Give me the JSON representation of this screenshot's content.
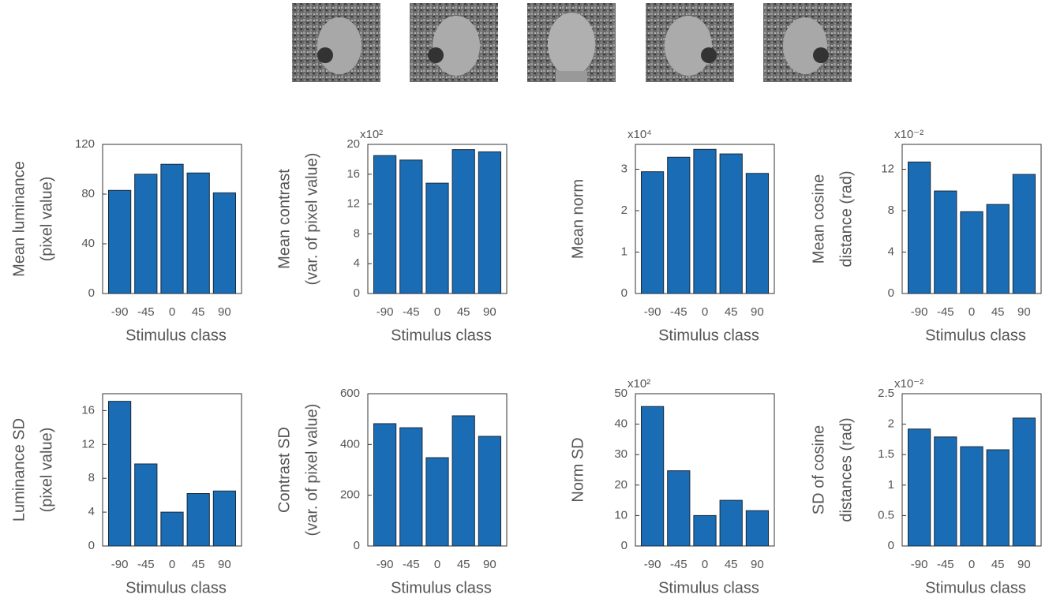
{
  "chart_data": [
    {
      "type": "bar",
      "ylabel": [
        "Mean luminance",
        "(pixel value)"
      ],
      "xlabel": "Stimulus class",
      "categories": [
        "-90",
        "-45",
        "0",
        "45",
        "90"
      ],
      "values": [
        83,
        96,
        104,
        97,
        81
      ],
      "ylim": [
        0,
        120
      ],
      "yticks": [
        0,
        40,
        80,
        120
      ],
      "color": "#1a6db5"
    },
    {
      "type": "bar",
      "ylabel": [
        "Mean contrast",
        "(var. of pixel value)"
      ],
      "scale_label": "x10²",
      "xlabel": "Stimulus class",
      "categories": [
        "-90",
        "-45",
        "0",
        "45",
        "90"
      ],
      "values": [
        18.5,
        17.9,
        14.8,
        19.3,
        19.0
      ],
      "ylim": [
        0,
        20
      ],
      "yticks": [
        0,
        4,
        8,
        12,
        16,
        20
      ],
      "color": "#1a6db5"
    },
    {
      "type": "bar",
      "ylabel": [
        "Mean norm"
      ],
      "scale_label": "x10⁴",
      "xlabel": "Stimulus class",
      "categories": [
        "-90",
        "-45",
        "0",
        "45",
        "90"
      ],
      "values": [
        2.94,
        3.29,
        3.48,
        3.37,
        2.9
      ],
      "ylim": [
        0,
        3.6
      ],
      "yticks": [
        0,
        1,
        2,
        3
      ],
      "color": "#1a6db5"
    },
    {
      "type": "bar",
      "ylabel": [
        "Mean cosine",
        "distance (rad)"
      ],
      "scale_label": "x10⁻²",
      "xlabel": "Stimulus class",
      "categories": [
        "-90",
        "-45",
        "0",
        "45",
        "90"
      ],
      "values": [
        12.7,
        9.9,
        7.9,
        8.6,
        11.5
      ],
      "ylim": [
        0,
        14.4
      ],
      "yticks": [
        0,
        4,
        8,
        12
      ],
      "color": "#1a6db5"
    },
    {
      "type": "bar",
      "ylabel": [
        "Luminance SD",
        "(pixel value)"
      ],
      "xlabel": "Stimulus class",
      "categories": [
        "-90",
        "-45",
        "0",
        "45",
        "90"
      ],
      "values": [
        17.1,
        9.7,
        4.0,
        6.2,
        6.5
      ],
      "ylim": [
        0,
        18
      ],
      "yticks": [
        0,
        4,
        8,
        12,
        16
      ],
      "color": "#1a6db5"
    },
    {
      "type": "bar",
      "ylabel": [
        "Contrast SD",
        "(var. of pixel value)"
      ],
      "xlabel": "Stimulus class",
      "categories": [
        "-90",
        "-45",
        "0",
        "45",
        "90"
      ],
      "values": [
        482,
        466,
        348,
        513,
        432
      ],
      "ylim": [
        0,
        600
      ],
      "yticks": [
        0,
        200,
        400,
        600
      ],
      "color": "#1a6db5"
    },
    {
      "type": "bar",
      "ylabel": [
        "Norm SD"
      ],
      "scale_label": "x10²",
      "xlabel": "Stimulus class",
      "categories": [
        "-90",
        "-45",
        "0",
        "45",
        "90"
      ],
      "values": [
        45.8,
        24.7,
        10,
        15,
        11.6
      ],
      "ylim": [
        0,
        50
      ],
      "yticks": [
        0,
        10,
        20,
        30,
        40,
        50
      ],
      "color": "#1a6db5"
    },
    {
      "type": "bar",
      "ylabel": [
        "SD of cosine",
        "distances (rad)"
      ],
      "scale_label": "x10⁻²",
      "xlabel": "Stimulus class",
      "categories": [
        "-90",
        "-45",
        "0",
        "45",
        "90"
      ],
      "values": [
        1.92,
        1.79,
        1.63,
        1.58,
        2.1
      ],
      "ylim": [
        0,
        2.5
      ],
      "yticks": [
        0,
        0.5,
        1,
        1.5,
        2,
        2.5
      ],
      "color": "#1a6db5"
    }
  ]
}
